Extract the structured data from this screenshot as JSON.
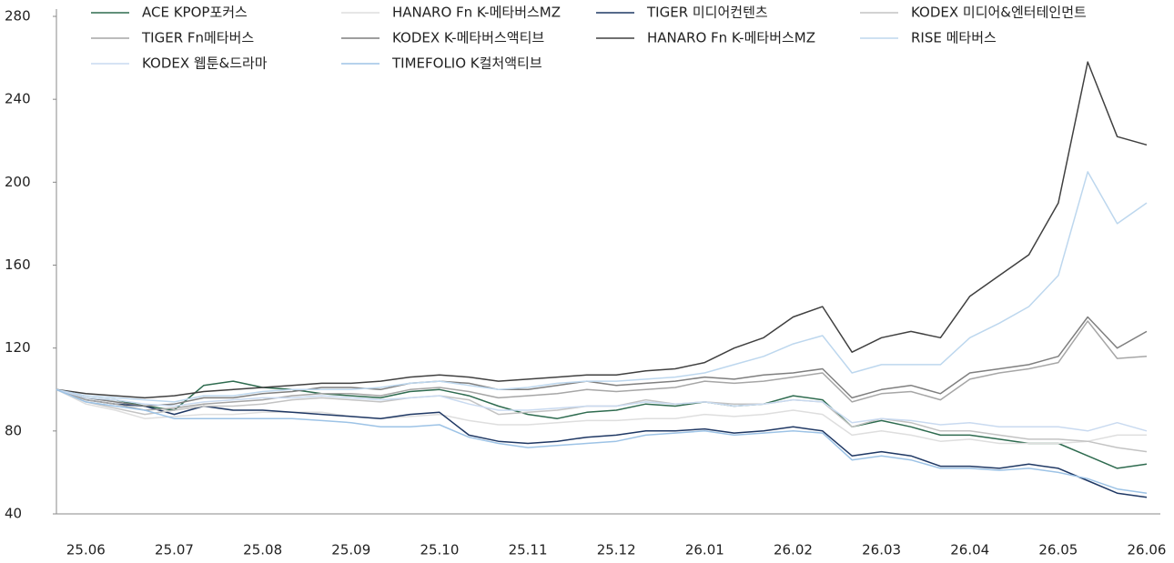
{
  "chart_data": {
    "type": "line",
    "categories": [
      null,
      "25.06",
      null,
      null,
      "25.07",
      null,
      null,
      "25.08",
      null,
      null,
      "25.09",
      null,
      null,
      "25.10",
      null,
      null,
      "25.11",
      null,
      null,
      "25.12",
      null,
      null,
      "26.01",
      null,
      null,
      "26.02",
      null,
      null,
      "26.03",
      null,
      null,
      "26.04",
      null,
      null,
      "26.05",
      null,
      null,
      "26.06"
    ],
    "ylim": [
      40,
      280
    ],
    "yticks": [
      40,
      80,
      120,
      160,
      200,
      240,
      280
    ],
    "series": [
      {
        "name": "ACE KPOP포커스",
        "color": "#2e6b4f",
        "values": [
          100,
          96,
          95,
          92,
          90,
          102,
          104,
          101,
          100,
          98,
          97,
          96,
          99,
          100,
          97,
          92,
          88,
          86,
          89,
          90,
          93,
          92,
          94,
          92,
          93,
          97,
          95,
          82,
          85,
          82,
          78,
          78,
          76,
          74,
          74,
          68,
          62,
          64
        ]
      },
      {
        "name": "HANARO Fn K-메타버스MZ",
        "color": "#dedede",
        "values": [
          100,
          93,
          90,
          86,
          87,
          88,
          88,
          89,
          89,
          89,
          87,
          86,
          87,
          88,
          85,
          83,
          83,
          84,
          85,
          85,
          86,
          86,
          88,
          87,
          88,
          90,
          88,
          78,
          80,
          78,
          75,
          76,
          74,
          74,
          74,
          75,
          78,
          78
        ]
      },
      {
        "name": "TIGER 미디어컨텐츠",
        "color": "#1f3864",
        "values": [
          100,
          95,
          93,
          92,
          88,
          92,
          90,
          90,
          89,
          88,
          87,
          86,
          88,
          89,
          78,
          75,
          74,
          75,
          77,
          78,
          80,
          80,
          81,
          79,
          80,
          82,
          80,
          68,
          70,
          68,
          63,
          63,
          62,
          64,
          62,
          56,
          50,
          48
        ]
      },
      {
        "name": "KODEX 미디어&엔터테인먼트",
        "color": "#c3c3c3",
        "values": [
          100,
          94,
          91,
          88,
          90,
          92,
          92,
          93,
          95,
          96,
          95,
          94,
          96,
          97,
          95,
          88,
          89,
          90,
          92,
          92,
          95,
          93,
          94,
          93,
          93,
          95,
          94,
          82,
          86,
          84,
          80,
          80,
          78,
          76,
          76,
          75,
          72,
          70
        ]
      },
      {
        "name": "TIGER Fn메타버스",
        "color": "#a6a6a6",
        "values": [
          100,
          95,
          93,
          90,
          91,
          93,
          94,
          95,
          97,
          98,
          98,
          97,
          100,
          101,
          99,
          96,
          97,
          98,
          100,
          99,
          100,
          101,
          104,
          103,
          104,
          106,
          108,
          94,
          98,
          99,
          95,
          105,
          108,
          110,
          113,
          133,
          115,
          116
        ]
      },
      {
        "name": "KODEX K-메타버스액티브",
        "color": "#7f7f7f",
        "values": [
          100,
          96,
          94,
          92,
          93,
          96,
          96,
          98,
          99,
          101,
          101,
          100,
          103,
          104,
          103,
          100,
          100,
          102,
          104,
          102,
          103,
          104,
          106,
          105,
          107,
          108,
          110,
          96,
          100,
          102,
          98,
          108,
          110,
          112,
          116,
          135,
          120,
          128
        ]
      },
      {
        "name": "HANARO Fn K-메타버스MZ",
        "color": "#404040",
        "values": [
          100,
          98,
          97,
          96,
          97,
          99,
          100,
          101,
          102,
          103,
          103,
          104,
          106,
          107,
          106,
          104,
          105,
          106,
          107,
          107,
          109,
          110,
          113,
          120,
          125,
          135,
          140,
          118,
          125,
          128,
          125,
          145,
          155,
          165,
          190,
          258,
          222,
          218
        ]
      },
      {
        "name": "RISE 메타버스",
        "color": "#bdd7ee",
        "values": [
          100,
          97,
          96,
          95,
          94,
          97,
          97,
          99,
          100,
          100,
          100,
          101,
          103,
          104,
          102,
          100,
          101,
          103,
          104,
          104,
          105,
          106,
          108,
          112,
          116,
          122,
          126,
          108,
          112,
          112,
          112,
          125,
          132,
          140,
          155,
          205,
          180,
          190
        ]
      },
      {
        "name": "KODEX 웹툰&드라마",
        "color": "#c9daf0",
        "values": [
          100,
          96,
          95,
          93,
          92,
          94,
          95,
          96,
          96,
          97,
          96,
          95,
          96,
          97,
          93,
          90,
          90,
          91,
          92,
          92,
          94,
          93,
          94,
          92,
          93,
          95,
          94,
          84,
          86,
          85,
          83,
          84,
          82,
          82,
          82,
          80,
          84,
          80
        ]
      },
      {
        "name": "TIMEFOLIO K컬처액티브",
        "color": "#9dc3e6",
        "values": [
          100,
          94,
          92,
          90,
          86,
          86,
          86,
          86,
          86,
          85,
          84,
          82,
          82,
          83,
          77,
          74,
          72,
          73,
          74,
          75,
          78,
          79,
          80,
          78,
          79,
          80,
          79,
          66,
          68,
          66,
          62,
          62,
          61,
          62,
          60,
          57,
          52,
          50
        ]
      }
    ]
  }
}
